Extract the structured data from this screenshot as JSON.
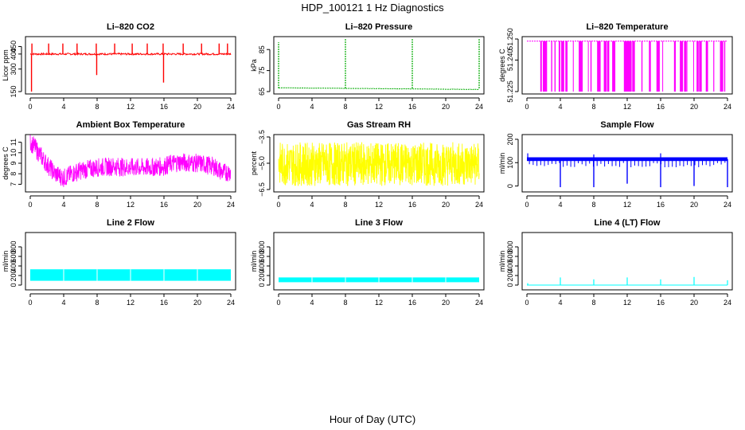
{
  "title": "HDP_100121  1 Hz Diagnostics",
  "xlabel": "Hour of Day (UTC)",
  "chart_data": [
    {
      "type": "line",
      "title": "Li–820 CO2",
      "ylabel": "Licor ppm",
      "color": "#ff0000",
      "xlim": [
        0,
        24
      ],
      "ylim": [
        150,
        500
      ],
      "xticks": [
        0,
        4,
        8,
        12,
        16,
        20,
        24
      ],
      "yticks": [
        150,
        300,
        400,
        450
      ],
      "series": [
        {
          "baseline": 400,
          "noise": 12,
          "x": [
            0.2,
            2.2,
            3.9,
            5.6,
            7.9,
            10.1,
            12.2,
            14.0,
            15.9,
            18.3,
            20.5,
            22.6,
            23.6
          ],
          "y": [
            470,
            470,
            470,
            470,
            470,
            470,
            470,
            470,
            470,
            470,
            470,
            470,
            470
          ],
          "dips_x": [
            0.15,
            7.95,
            15.95
          ],
          "dips_y": [
            150,
            260,
            210
          ]
        }
      ]
    },
    {
      "type": "line",
      "title": "Li–820 Pressure",
      "ylabel": "kPa",
      "color": "#00aa00",
      "xlim": [
        0,
        24
      ],
      "ylim": [
        65,
        90
      ],
      "xticks": [
        0,
        4,
        8,
        12,
        16,
        20,
        24
      ],
      "yticks": [
        65,
        75,
        85
      ],
      "series": [
        {
          "baseline_start": 66.8,
          "baseline_end": 66.0,
          "noise": 0.15,
          "x": [
            0.0,
            8.0,
            16.0,
            24.0
          ],
          "y": [
            88.5,
            90,
            90,
            90
          ]
        }
      ]
    },
    {
      "type": "line",
      "title": "Li–820 Temperature",
      "ylabel": "degrees C",
      "color": "#ff00ff",
      "xlim": [
        0,
        24
      ],
      "ylim": [
        51.225,
        51.25
      ],
      "xticks": [
        0,
        4,
        8,
        12,
        16,
        20,
        24
      ],
      "yticks": [
        51.225,
        51.24,
        51.25
      ],
      "ytick_labels": [
        "51.225",
        "51.240",
        "51.250"
      ],
      "series": [
        {
          "baseline": 51.249,
          "spikes_low": 51.225,
          "x": [
            1.6,
            1.9,
            2.2,
            2.9,
            3.3,
            3.8,
            4.1,
            4.6,
            5.5,
            6.2,
            6.5,
            7.3,
            7.6,
            8.4,
            8.6,
            9.2,
            9.6,
            10.2,
            11.6,
            11.9,
            12.2,
            12.6,
            13.7,
            14.6,
            15.5,
            16.2,
            17.6,
            18.3,
            18.8,
            19.1,
            19.9,
            20.3,
            20.6,
            21.4,
            22.3,
            23.1,
            23.6
          ]
        }
      ]
    },
    {
      "type": "line",
      "title": "Ambient Box Temperature",
      "ylabel": "degrees C",
      "color": "#ff00ff",
      "xlim": [
        0,
        24
      ],
      "ylim": [
        6.5,
        11.5
      ],
      "xticks": [
        0,
        4,
        8,
        12,
        16,
        20,
        24
      ],
      "yticks": [
        7,
        8,
        9,
        10,
        11
      ],
      "series": [
        {
          "x": [
            0,
            0.5,
            1,
            2,
            3,
            4,
            5,
            6,
            8,
            10,
            12,
            14,
            16,
            17,
            18,
            20,
            22,
            23,
            24
          ],
          "y": [
            11.0,
            10.6,
            10.0,
            8.9,
            8.0,
            7.6,
            8.0,
            8.3,
            8.6,
            8.7,
            8.6,
            8.6,
            8.7,
            9.0,
            9.1,
            9.0,
            8.7,
            8.1,
            8.2
          ],
          "band": 0.9
        }
      ]
    },
    {
      "type": "line",
      "title": "Gas Stream RH",
      "ylabel": "percent",
      "color": "#ffff00",
      "xlim": [
        0,
        24
      ],
      "ylim": [
        -6.5,
        -3.5
      ],
      "xticks": [
        0,
        4,
        8,
        12,
        16,
        20,
        24
      ],
      "yticks": [
        -6.5,
        -5.0,
        -3.5
      ],
      "ytick_labels": [
        "−6.5",
        "−5.0",
        "−3.5"
      ],
      "series": [
        {
          "center": -5.0,
          "low": -6.3,
          "high": -3.8
        }
      ]
    },
    {
      "type": "line",
      "title": "Sample Flow",
      "ylabel": "ml/min",
      "color": "#0000ff",
      "xlim": [
        0,
        24
      ],
      "ylim": [
        -15,
        210
      ],
      "xticks": [
        0,
        4,
        8,
        12,
        16,
        20,
        24
      ],
      "yticks": [
        0,
        100,
        200
      ],
      "series": [
        {
          "baseline": 115,
          "band": 8,
          "dips_x": [
            4.0,
            8.0,
            12.0,
            16.0,
            20.0,
            24.0
          ],
          "dips_y": [
            -5,
            -5,
            10,
            -5,
            0,
            -5
          ],
          "peaks_x": [
            0.1,
            8.0,
            16.0
          ],
          "peaks_y": [
            140,
            135,
            140
          ]
        }
      ]
    },
    {
      "type": "area",
      "title": "Line 2 Flow",
      "ylabel": "ml/min",
      "color": "#00ffff",
      "xlim": [
        0,
        24
      ],
      "ylim": [
        -50,
        1050
      ],
      "xticks": [
        0,
        4,
        8,
        12,
        16,
        20,
        24
      ],
      "yticks": [
        0,
        200,
        400,
        600,
        800
      ],
      "series": [
        {
          "low": 90,
          "high": 330,
          "gaps_x": [
            4.0,
            8.0,
            12.0,
            16.0,
            20.0
          ]
        }
      ]
    },
    {
      "type": "area",
      "title": "Line 3 Flow",
      "ylabel": "ml/min",
      "color": "#00ffff",
      "xlim": [
        0,
        24
      ],
      "ylim": [
        -50,
        1050
      ],
      "xticks": [
        0,
        4,
        8,
        12,
        16,
        20,
        24
      ],
      "yticks": [
        0,
        200,
        400,
        600,
        800
      ],
      "series": [
        {
          "low": 60,
          "high": 160,
          "gaps_x": [
            4.0,
            8.0,
            12.0,
            16.0,
            20.0
          ]
        }
      ]
    },
    {
      "type": "line",
      "title": "Line 4 (LT) Flow",
      "ylabel": "ml/min",
      "color": "#00ffff",
      "xlim": [
        0,
        24
      ],
      "ylim": [
        -50,
        1050
      ],
      "xticks": [
        0,
        4,
        8,
        12,
        16,
        20,
        24
      ],
      "yticks": [
        0,
        200,
        400,
        600,
        800
      ],
      "series": [
        {
          "baseline": 0,
          "x": [
            0.1,
            4.0,
            8.0,
            12.0,
            16.0,
            20.0,
            24.0
          ],
          "y": [
            40,
            160,
            120,
            160,
            120,
            170,
            100
          ]
        }
      ]
    }
  ]
}
